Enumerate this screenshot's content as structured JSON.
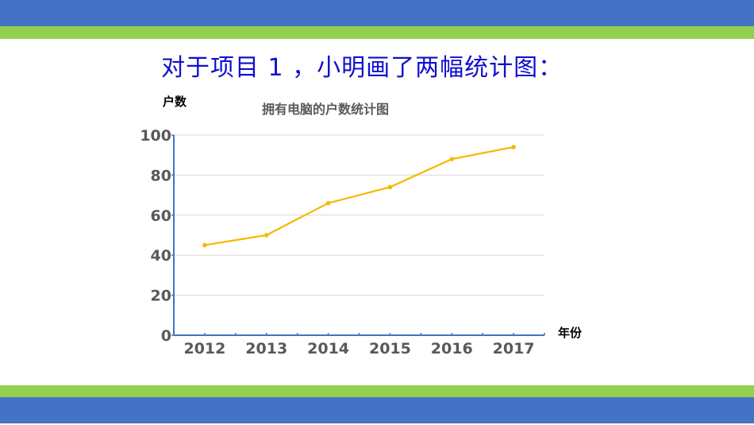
{
  "slide": {
    "title": "对于项目 1 ，小明画了两幅统计图：",
    "colors": {
      "band_blue": "#4472c4",
      "band_green": "#92d050",
      "title_color": "#0f0fd0"
    }
  },
  "chart_data": {
    "type": "line",
    "title": "拥有电脑的户数统计图",
    "xlabel": "年份",
    "ylabel": "户数",
    "categories": [
      "2012",
      "2013",
      "2014",
      "2015",
      "2016",
      "2017"
    ],
    "values": [
      45,
      50,
      66,
      74,
      88,
      94
    ],
    "series": [
      {
        "name": "户数",
        "values": [
          45,
          50,
          66,
          74,
          88,
          94
        ],
        "color": "#f5b800"
      }
    ],
    "ylim": [
      0,
      100
    ],
    "yticks": [
      "0",
      "20",
      "40",
      "60",
      "80",
      "100"
    ],
    "grid": true,
    "legend": "none",
    "axis_color": "#4472c4"
  }
}
